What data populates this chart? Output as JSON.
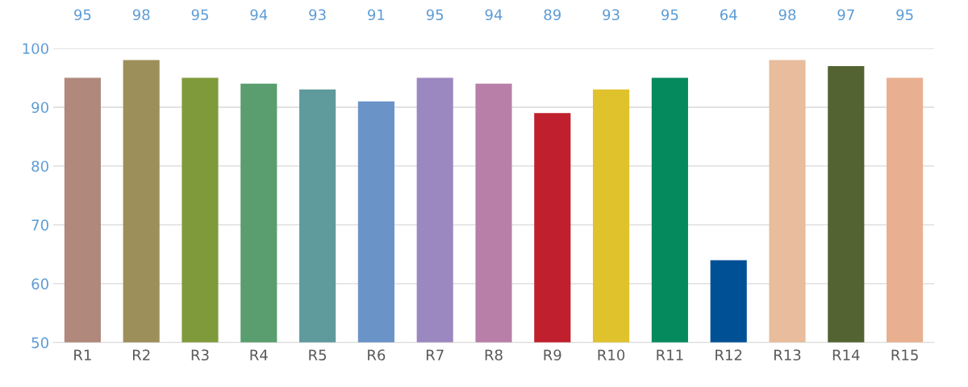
{
  "chart_data": {
    "type": "bar",
    "categories": [
      "R1",
      "R2",
      "R3",
      "R4",
      "R5",
      "R6",
      "R7",
      "R8",
      "R9",
      "R10",
      "R11",
      "R12",
      "R13",
      "R14",
      "R15"
    ],
    "values": [
      95,
      98,
      95,
      94,
      93,
      91,
      95,
      94,
      89,
      93,
      95,
      64,
      98,
      97,
      95
    ],
    "colors": [
      "#b0887c",
      "#9c8f5a",
      "#7f9a3b",
      "#5a9e6f",
      "#5f9a9c",
      "#6a93c8",
      "#9b88c0",
      "#b880a8",
      "#c01f2d",
      "#e0c22c",
      "#058a5e",
      "#005096",
      "#e8bc9c",
      "#536331",
      "#e8b090"
    ],
    "ylim": [
      50,
      100
    ],
    "yticks": [
      50,
      60,
      70,
      80,
      90,
      100
    ],
    "grid": "y",
    "data_labels": true,
    "legend": false
  }
}
